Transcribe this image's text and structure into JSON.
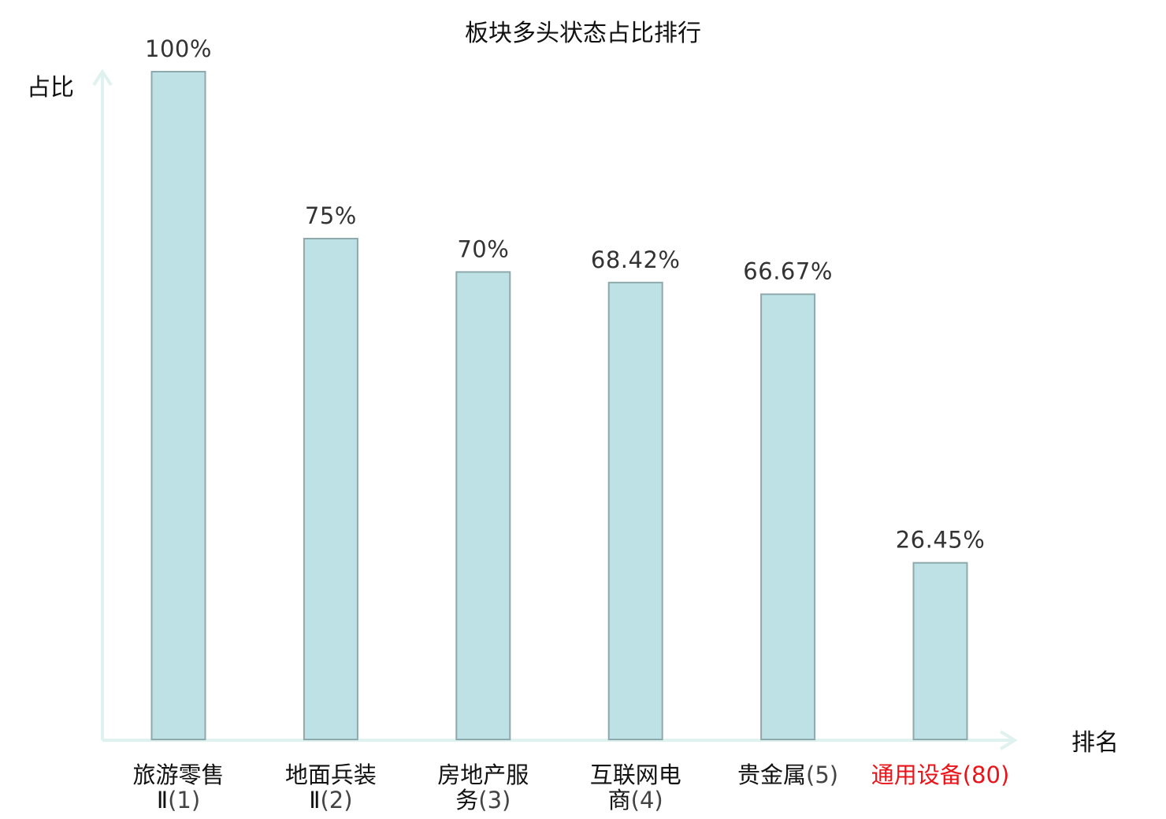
{
  "chart_data": {
    "type": "bar",
    "title": "板块多头状态占比排行",
    "ylabel": "占比",
    "xlabel": "排名",
    "ylim": [
      0,
      100
    ],
    "grid": false,
    "categories": [
      {
        "lines": [
          "旅游零售",
          "Ⅱ"
        ],
        "rank": "(1)",
        "highlight": false
      },
      {
        "lines": [
          "地面兵装",
          "Ⅱ"
        ],
        "rank": "(2)",
        "highlight": false
      },
      {
        "lines": [
          "房地产服",
          "务"
        ],
        "rank": "(3)",
        "highlight": false
      },
      {
        "lines": [
          "互联网电",
          "商"
        ],
        "rank": "(4)",
        "highlight": false
      },
      {
        "lines": [
          "贵金属"
        ],
        "rank": "(5)",
        "highlight": false
      },
      {
        "lines": [
          "通用设备"
        ],
        "rank": "(80)",
        "highlight": true
      }
    ],
    "values": [
      100,
      75,
      70,
      68.42,
      66.67,
      26.45
    ],
    "value_labels": [
      "100%",
      "75%",
      "70%",
      "68.42%",
      "66.67%",
      "26.45%"
    ],
    "colors": {
      "bar_fill": "#bde1e4",
      "bar_stroke": "#8ea9ab",
      "axis": "#dff2ef",
      "highlight": "#e8141a"
    }
  }
}
